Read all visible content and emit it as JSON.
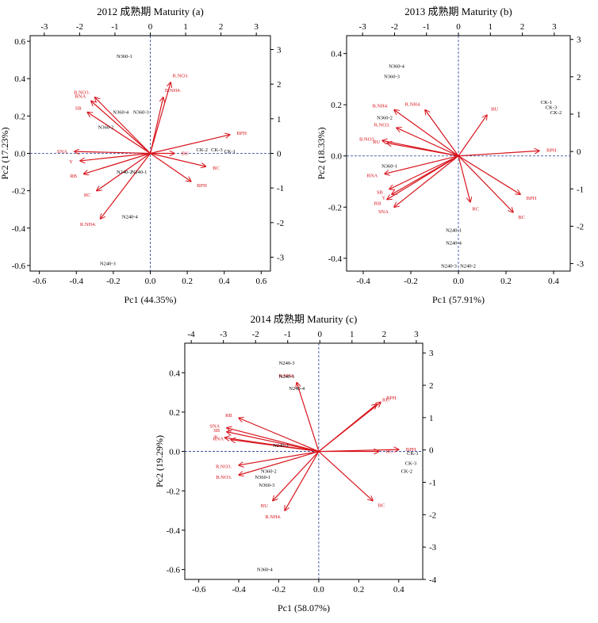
{
  "chart_data": [
    {
      "type": "scatter",
      "title": "2012 成熟期 Maturity (a)",
      "xlabel": "Pc1 (44.35%)",
      "ylabel": "Pc2 (17.23%)",
      "xlim": [
        -0.65,
        0.65
      ],
      "ylim": [
        -0.63,
        0.63
      ],
      "x2lim": [
        -3.4,
        3.4
      ],
      "y2lim": [
        -3.4,
        3.4
      ],
      "xticks": [
        "-0.6",
        "-0.4",
        "-0.2",
        "0.0",
        "0.2",
        "0.4",
        "0.6"
      ],
      "yticks": [
        "-0.6",
        "-0.4",
        "-0.2",
        "0.0",
        "0.2",
        "0.4",
        "0.6"
      ],
      "x2ticks": [
        "-3",
        "-2",
        "-1",
        "0",
        "1",
        "2",
        "3"
      ],
      "y2ticks": [
        "-3",
        "-2",
        "-1",
        "0",
        "1",
        "2",
        "3"
      ],
      "samples": [
        {
          "label": "N360-1",
          "x": -0.14,
          "y": 0.52
        },
        {
          "label": "N360-4",
          "x": -0.16,
          "y": 0.22
        },
        {
          "label": "N360-3",
          "x": -0.05,
          "y": 0.22
        },
        {
          "label": "N360-2",
          "x": -0.24,
          "y": 0.14
        },
        {
          "label": "N240-2",
          "x": -0.14,
          "y": -0.1
        },
        {
          "label": "N240-1",
          "x": -0.06,
          "y": -0.1
        },
        {
          "label": "N240-4",
          "x": -0.11,
          "y": -0.34
        },
        {
          "label": "N240-3",
          "x": -0.23,
          "y": -0.59
        },
        {
          "label": "CK-2",
          "x": 0.28,
          "y": 0.02
        },
        {
          "label": "CK-3",
          "x": 0.36,
          "y": 0.02
        },
        {
          "label": "CK-1",
          "x": 0.43,
          "y": 0.01
        }
      ],
      "variables": [
        {
          "label": "R.NO3.",
          "x": 0.11,
          "y": 0.38
        },
        {
          "label": "B.NH4.",
          "x": 0.07,
          "y": 0.3
        },
        {
          "label": "B.NO3.",
          "x": -0.3,
          "y": 0.3
        },
        {
          "label": "RNA",
          "x": -0.32,
          "y": 0.28
        },
        {
          "label": "SB",
          "x": -0.34,
          "y": 0.22
        },
        {
          "label": "BU",
          "x": 0.13,
          "y": 0.0
        },
        {
          "label": "BPH",
          "x": 0.43,
          "y": 0.1
        },
        {
          "label": "BC",
          "x": 0.3,
          "y": -0.07
        },
        {
          "label": "RPH",
          "x": 0.22,
          "y": -0.15
        },
        {
          "label": "SNA",
          "x": -0.41,
          "y": 0.01
        },
        {
          "label": "Y",
          "x": -0.38,
          "y": -0.04
        },
        {
          "label": "RB",
          "x": -0.36,
          "y": -0.11
        },
        {
          "label": "RC",
          "x": -0.29,
          "y": -0.2
        },
        {
          "label": "R.NH4.",
          "x": -0.27,
          "y": -0.35
        }
      ]
    },
    {
      "type": "scatter",
      "title": "2013 成熟期 Maturity (b)",
      "xlabel": "Pc1 (57.91%)",
      "ylabel": "Pc2 (18.33%)",
      "xlim": [
        -0.47,
        0.47
      ],
      "ylim": [
        -0.45,
        0.47
      ],
      "x2lim": [
        -3.5,
        3.5
      ],
      "y2lim": [
        -3.2,
        3.1
      ],
      "xticks": [
        "-0.4",
        "-0.2",
        "0.0",
        "0.2",
        "0.4"
      ],
      "yticks": [
        "-0.4",
        "-0.2",
        "0.0",
        "0.2",
        "0.4"
      ],
      "x2ticks": [
        "-3",
        "-2",
        "-1",
        "0",
        "1",
        "2",
        "3"
      ],
      "y2ticks": [
        "-3",
        "-2",
        "-1",
        "0",
        "1",
        "2",
        "3"
      ],
      "samples": [
        {
          "label": "N360-4",
          "x": -0.26,
          "y": 0.35
        },
        {
          "label": "N360-3",
          "x": -0.28,
          "y": 0.31
        },
        {
          "label": "N360-2",
          "x": -0.31,
          "y": 0.15
        },
        {
          "label": "N360-1",
          "x": -0.29,
          "y": -0.04
        },
        {
          "label": "N240-1",
          "x": -0.02,
          "y": -0.29
        },
        {
          "label": "N240-4",
          "x": -0.02,
          "y": -0.34
        },
        {
          "label": "N240-3",
          "x": -0.04,
          "y": -0.43
        },
        {
          "label": "N240-2",
          "x": 0.04,
          "y": -0.43
        },
        {
          "label": "CK-1",
          "x": 0.37,
          "y": 0.21
        },
        {
          "label": "CK-3",
          "x": 0.39,
          "y": 0.19
        },
        {
          "label": "CK-2",
          "x": 0.41,
          "y": 0.17
        }
      ],
      "variables": [
        {
          "label": "B.NH4.",
          "x": -0.27,
          "y": 0.18
        },
        {
          "label": "R.NH4.",
          "x": -0.14,
          "y": 0.18
        },
        {
          "label": "R.NO3.",
          "x": -0.26,
          "y": 0.11
        },
        {
          "label": "B.NO3.",
          "x": -0.32,
          "y": 0.06
        },
        {
          "label": "RU",
          "x": -0.3,
          "y": 0.05
        },
        {
          "label": "BU",
          "x": 0.12,
          "y": 0.16
        },
        {
          "label": "RPH",
          "x": 0.34,
          "y": 0.02
        },
        {
          "label": "RNA",
          "x": -0.31,
          "y": -0.07
        },
        {
          "label": "SB",
          "x": -0.29,
          "y": -0.13
        },
        {
          "label": "Y",
          "x": -0.28,
          "y": -0.15
        },
        {
          "label": "RB",
          "x": -0.3,
          "y": -0.17
        },
        {
          "label": "SNA",
          "x": -0.27,
          "y": -0.2
        },
        {
          "label": "RC",
          "x": 0.05,
          "y": -0.18
        },
        {
          "label": "BPH",
          "x": 0.26,
          "y": -0.15
        },
        {
          "label": "BC",
          "x": 0.23,
          "y": -0.22
        }
      ]
    },
    {
      "type": "scatter",
      "title": "2014 成熟期 Maturity (c)",
      "xlabel": "Pc1 (58.07%)",
      "ylabel": "Pc2 (19.29%)",
      "xlim": [
        -0.67,
        0.52
      ],
      "ylim": [
        -0.65,
        0.55
      ],
      "x2lim": [
        -4.2,
        3.2
      ],
      "y2lim": [
        -4.0,
        3.3
      ],
      "xticks": [
        "-0.6",
        "-0.4",
        "-0.2",
        "0.0",
        "0.2",
        "0.4"
      ],
      "yticks": [
        "-0.6",
        "-0.4",
        "-0.2",
        "0.0",
        "0.2",
        "0.4"
      ],
      "x2ticks": [
        "-4",
        "-3",
        "-2",
        "-1",
        "0",
        "1",
        "2",
        "3"
      ],
      "y2ticks": [
        "-4",
        "-3",
        "-2",
        "-1",
        "0",
        "1",
        "2",
        "3"
      ],
      "samples": [
        {
          "label": "N240-3",
          "x": -0.16,
          "y": 0.45
        },
        {
          "label": "N240-1",
          "x": -0.16,
          "y": 0.38
        },
        {
          "label": "N240-4",
          "x": -0.11,
          "y": 0.32
        },
        {
          "label": "N240-2",
          "x": -0.19,
          "y": 0.03
        },
        {
          "label": "N360-2",
          "x": -0.25,
          "y": -0.1
        },
        {
          "label": "N360-1",
          "x": -0.28,
          "y": -0.13
        },
        {
          "label": "N360-3",
          "x": -0.26,
          "y": -0.17
        },
        {
          "label": "N360-4",
          "x": -0.27,
          "y": -0.6
        },
        {
          "label": "CK-1",
          "x": 0.47,
          "y": -0.01
        },
        {
          "label": "CK-3",
          "x": 0.46,
          "y": -0.06
        },
        {
          "label": "CK-2",
          "x": 0.44,
          "y": -0.1
        }
      ],
      "variables": [
        {
          "label": "B.NH4.",
          "x": -0.11,
          "y": 0.35
        },
        {
          "label": "RB",
          "x": -0.4,
          "y": 0.17
        },
        {
          "label": "SNA",
          "x": -0.46,
          "y": 0.12
        },
        {
          "label": "SB",
          "x": -0.46,
          "y": 0.1
        },
        {
          "label": "Y",
          "x": -0.47,
          "y": 0.07
        },
        {
          "label": "RNA",
          "x": -0.44,
          "y": 0.06
        },
        {
          "label": "R.NO3.",
          "x": -0.4,
          "y": -0.07
        },
        {
          "label": "B.NO3.",
          "x": -0.4,
          "y": -0.12
        },
        {
          "label": "BU",
          "x": -0.23,
          "y": -0.25
        },
        {
          "label": "R.NH4.",
          "x": -0.17,
          "y": -0.3
        },
        {
          "label": "RU",
          "x": 0.29,
          "y": 0.24
        },
        {
          "label": "RPH",
          "x": 0.31,
          "y": 0.25
        },
        {
          "label": "RC",
          "x": 0.3,
          "y": 0.0
        },
        {
          "label": "BPH",
          "x": 0.4,
          "y": 0.01
        },
        {
          "label": "BC",
          "x": 0.27,
          "y": -0.25
        }
      ]
    }
  ]
}
